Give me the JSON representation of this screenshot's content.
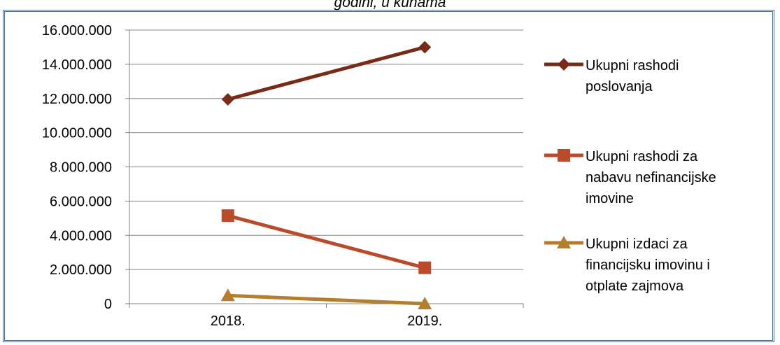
{
  "chart_data": {
    "type": "line",
    "title": "godini, u kunama",
    "categories": [
      "2018.",
      "2019."
    ],
    "y_ticks": [
      "0",
      "2.000.000",
      "4.000.000",
      "6.000.000",
      "8.000.000",
      "10.000.000",
      "12.000.000",
      "14.000.000",
      "16.000.000"
    ],
    "ylim": [
      0,
      16000000
    ],
    "grid": true,
    "legend_position": "right",
    "series": [
      {
        "name": "Ukupni rashodi poslovanja",
        "name_lines": [
          "Ukupni rashodi",
          "poslovanja"
        ],
        "values": [
          11950000,
          15000000
        ],
        "color": "#772c19",
        "marker": "diamond"
      },
      {
        "name": "Ukupni rashodi za nabavu nefinancijske imovine",
        "name_lines": [
          "Ukupni rashodi za",
          "nabavu nefinancijske",
          "imovine"
        ],
        "values": [
          5150000,
          2100000
        ],
        "color": "#bb4a2b",
        "marker": "square"
      },
      {
        "name": "Ukupni izdaci za financijsku imovinu i otplate zajmova",
        "name_lines": [
          "Ukupni izdaci za",
          "financijsku imovinu i",
          "otplate zajmova"
        ],
        "values": [
          480000,
          0
        ],
        "color": "#b57d2f",
        "marker": "triangle"
      }
    ]
  }
}
